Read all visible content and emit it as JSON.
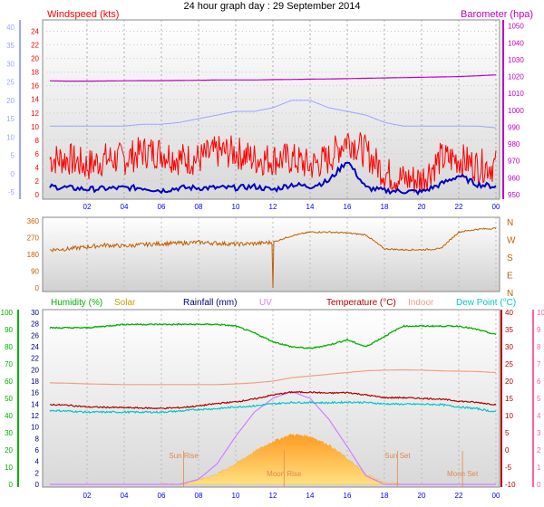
{
  "title": "24 hour graph day : 29 September 2014",
  "colors": {
    "wind": "#ff0000",
    "gust_avg": "#0000c0",
    "baro": "#c000c0",
    "baro_axis_faint": "#9aa6ff",
    "dir": "#c06000",
    "humidity": "#00b000",
    "solar": "#c8a000",
    "rainfall": "#000080",
    "uv": "#d080ff",
    "temperature": "#b00000",
    "indoor": "#f0a080",
    "dewpoint": "#00c8c8",
    "uv_axis": "#ff60a0"
  },
  "chart_data": [
    {
      "type": "line",
      "name": "wind-baro",
      "left_label": "Windspeed (kts)",
      "right_label": "Barometer (hpa)",
      "left_ticks": [
        "0",
        "2",
        "4",
        "6",
        "8",
        "10",
        "12",
        "14",
        "16",
        "18",
        "20",
        "22",
        "24"
      ],
      "outer_ticks": [
        "-5",
        "0",
        "5",
        "10",
        "15",
        "20",
        "25",
        "30",
        "35",
        "40"
      ],
      "right_ticks": [
        "950",
        "960",
        "970",
        "980",
        "990",
        "1000",
        "1010",
        "1020",
        "1030",
        "1040",
        "1050"
      ],
      "x_ticks": [
        "02",
        "04",
        "06",
        "08",
        "10",
        "12",
        "14",
        "16",
        "18",
        "20",
        "22",
        "00"
      ],
      "ylim_wind": [
        0,
        25
      ],
      "ylim_baro": [
        950,
        1052
      ],
      "wind_gust_hourly": [
        5,
        5,
        4,
        5,
        5,
        6,
        6,
        5,
        5,
        6,
        6,
        5,
        5,
        5,
        4,
        5,
        8,
        6,
        3,
        2,
        2,
        5,
        5,
        4,
        4
      ],
      "wind_avg_hourly": [
        1.2,
        1,
        0.8,
        0.9,
        1,
        1,
        0.6,
        1,
        1,
        1,
        1,
        1.2,
        0.7,
        1.5,
        1.2,
        2,
        5,
        1,
        0.6,
        0.5,
        0.4,
        1.5,
        2.8,
        1.5,
        1.2
      ],
      "baro_hourly": [
        1017.5,
        1017.3,
        1017.3,
        1017.4,
        1017.5,
        1017.6,
        1017.6,
        1017.7,
        1017.8,
        1018,
        1018,
        1018,
        1018.2,
        1018.3,
        1018.5,
        1018.6,
        1018.8,
        1019,
        1019.2,
        1019.4,
        1019.6,
        1019.8,
        1020,
        1020.5,
        1021
      ],
      "outer_hourly": [
        13,
        13,
        13,
        13,
        13,
        13.5,
        13.5,
        14,
        15,
        16,
        17,
        17,
        18,
        20,
        20,
        18,
        17,
        16,
        14,
        13,
        13,
        13,
        13,
        13,
        12.5
      ]
    },
    {
      "type": "line",
      "name": "wind-direction",
      "left_ticks": [
        "0",
        "90",
        "180",
        "270",
        "360"
      ],
      "right_labels": [
        "N",
        "W",
        "S",
        "E",
        "N"
      ],
      "ylim": [
        0,
        360
      ],
      "dir_hourly": [
        205,
        210,
        220,
        230,
        225,
        232,
        238,
        240,
        245,
        240,
        235,
        238,
        245,
        280,
        300,
        300,
        295,
        285,
        210,
        205,
        205,
        210,
        300,
        315,
        320
      ],
      "dir_spike": {
        "hour": 12,
        "value": 0
      }
    },
    {
      "type": "line",
      "name": "humidity-temperature",
      "legend": [
        "Humidity (%)",
        "Solar",
        "Rainfall (mm)",
        "UV",
        "Temperature (°C)",
        "Indoor",
        "Dew Point (°C)"
      ],
      "humidity_ticks": [
        "0",
        "10",
        "20",
        "30",
        "40",
        "50",
        "60",
        "70",
        "80",
        "90",
        "100"
      ],
      "rainfall_ticks": [
        "0",
        "2",
        "4",
        "6",
        "8",
        "10",
        "12",
        "14",
        "16",
        "18",
        "20",
        "22",
        "24",
        "26",
        "28",
        "30"
      ],
      "temp_ticks": [
        "-10",
        "-5",
        "0",
        "5",
        "10",
        "15",
        "20",
        "25",
        "30",
        "35",
        "40"
      ],
      "uv_ticks": [
        "0",
        "1",
        "2",
        "3",
        "4",
        "5",
        "6",
        "7",
        "8",
        "9",
        "10"
      ],
      "x_ticks": [
        "02",
        "04",
        "06",
        "08",
        "10",
        "12",
        "14",
        "16",
        "18",
        "20",
        "22",
        "00"
      ],
      "ylim_humidity": [
        0,
        100
      ],
      "ylim_temp": [
        -10,
        40
      ],
      "ylim_uv": [
        0,
        10
      ],
      "humidity_hourly": [
        91,
        91,
        91,
        92,
        93,
        93,
        93,
        93,
        93,
        93,
        92,
        88,
        83,
        80,
        79,
        81,
        84,
        80,
        86,
        92,
        92,
        92,
        92,
        90,
        87
      ],
      "temperature_hourly": [
        13.2,
        13,
        12.5,
        12.4,
        12.3,
        12.2,
        12.1,
        12.3,
        12.8,
        13.5,
        14,
        14.8,
        16,
        16.8,
        16.8,
        16.5,
        16.7,
        16,
        15.2,
        15.2,
        15,
        14.8,
        14.2,
        13.8,
        13.2
      ],
      "indoor_hourly": [
        19.5,
        19.4,
        19.2,
        19.1,
        19,
        19,
        19,
        19,
        19,
        19,
        19.2,
        19.5,
        20,
        21,
        21.5,
        22,
        22.5,
        23,
        23.2,
        23.3,
        23.2,
        23,
        22.9,
        22.8,
        22.5
      ],
      "dewpoint_hourly": [
        11.5,
        11.3,
        11,
        11,
        11,
        11,
        11,
        11.3,
        11.8,
        12,
        12.5,
        12.8,
        13.4,
        13.8,
        13.8,
        13.7,
        13.9,
        13.8,
        13.4,
        13.3,
        13.3,
        13.2,
        12.5,
        12,
        11
      ],
      "solar_hourly": [
        0,
        0,
        0,
        0,
        0,
        0,
        0,
        0.2,
        2.5,
        6,
        12,
        19,
        25,
        29,
        28,
        23,
        15,
        6,
        1,
        0,
        0,
        0,
        0,
        0,
        0
      ],
      "uv_hourly": [
        0,
        0,
        0,
        0,
        0,
        0,
        0,
        0,
        0.3,
        1.2,
        2.8,
        4.2,
        5,
        5.4,
        5,
        3.8,
        2.2,
        0.5,
        0,
        0,
        0,
        0,
        0,
        0,
        0
      ],
      "markers": [
        {
          "label": "Sun Rise",
          "hour": 7.2
        },
        {
          "label": "Moon Rise",
          "hour": 12.6
        },
        {
          "label": "Sun Set",
          "hour": 18.7
        },
        {
          "label": "Moon Set",
          "hour": 22.2
        }
      ]
    }
  ]
}
